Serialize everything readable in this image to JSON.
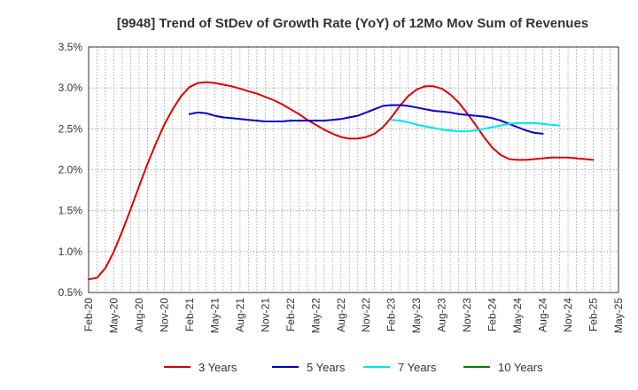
{
  "chart_data": {
    "type": "line",
    "title": "[9948]  Trend of StDev of Growth Rate (YoY) of 12Mo Mov Sum of Revenues",
    "xlabel": "",
    "ylabel": "",
    "ylim": [
      0.5,
      3.5
    ],
    "yticks": [
      0.5,
      1.0,
      1.5,
      2.0,
      2.5,
      3.0,
      3.5
    ],
    "ytick_labels": [
      "0.5%",
      "1.0%",
      "1.5%",
      "2.0%",
      "2.5%",
      "3.0%",
      "3.5%"
    ],
    "x_start_month_index": 0,
    "x_num_months": 64,
    "xtick_months": [
      0,
      3,
      6,
      9,
      12,
      15,
      18,
      21,
      24,
      27,
      30,
      33,
      36,
      39,
      42,
      45,
      48,
      51,
      54,
      57,
      60,
      63
    ],
    "xtick_labels": [
      "Feb-20",
      "May-20",
      "Aug-20",
      "Nov-20",
      "Feb-21",
      "May-21",
      "Aug-21",
      "Nov-21",
      "Feb-22",
      "May-22",
      "Aug-22",
      "Nov-22",
      "Feb-23",
      "May-23",
      "Aug-23",
      "Nov-23",
      "Feb-24",
      "May-24",
      "Aug-24",
      "Nov-24",
      "Feb-25",
      "May-25"
    ],
    "grid": true,
    "legend_position": "bottom",
    "series": [
      {
        "name": "3 Years",
        "color": "#dd0000",
        "start_month": 0,
        "values": [
          0.66,
          0.68,
          0.8,
          1.0,
          1.25,
          1.52,
          1.8,
          2.07,
          2.32,
          2.55,
          2.74,
          2.9,
          3.01,
          3.06,
          3.07,
          3.06,
          3.04,
          3.02,
          2.99,
          2.96,
          2.93,
          2.89,
          2.85,
          2.8,
          2.74,
          2.68,
          2.61,
          2.55,
          2.49,
          2.44,
          2.4,
          2.38,
          2.38,
          2.4,
          2.44,
          2.52,
          2.64,
          2.78,
          2.9,
          2.98,
          3.02,
          3.02,
          2.99,
          2.92,
          2.82,
          2.69,
          2.55,
          2.4,
          2.27,
          2.18,
          2.13,
          2.12,
          2.12,
          2.13,
          2.14,
          2.15,
          2.15,
          2.15,
          2.14,
          2.13,
          2.12
        ]
      },
      {
        "name": "5 Years",
        "color": "#0000cc",
        "start_month": 12,
        "values": [
          2.68,
          2.7,
          2.69,
          2.66,
          2.64,
          2.63,
          2.62,
          2.61,
          2.6,
          2.59,
          2.59,
          2.59,
          2.6,
          2.6,
          2.6,
          2.6,
          2.6,
          2.61,
          2.62,
          2.64,
          2.66,
          2.7,
          2.74,
          2.78,
          2.79,
          2.79,
          2.78,
          2.76,
          2.74,
          2.72,
          2.71,
          2.7,
          2.68,
          2.67,
          2.66,
          2.65,
          2.63,
          2.6,
          2.56,
          2.52,
          2.48,
          2.45,
          2.44
        ]
      },
      {
        "name": "7 Years",
        "color": "#00e5e5",
        "start_month": 36,
        "values": [
          2.61,
          2.6,
          2.58,
          2.55,
          2.53,
          2.51,
          2.49,
          2.48,
          2.47,
          2.47,
          2.48,
          2.5,
          2.52,
          2.54,
          2.56,
          2.57,
          2.57,
          2.57,
          2.56,
          2.55,
          2.54
        ]
      },
      {
        "name": "10 Years",
        "color": "#008000",
        "start_month": 0,
        "values": []
      }
    ]
  }
}
